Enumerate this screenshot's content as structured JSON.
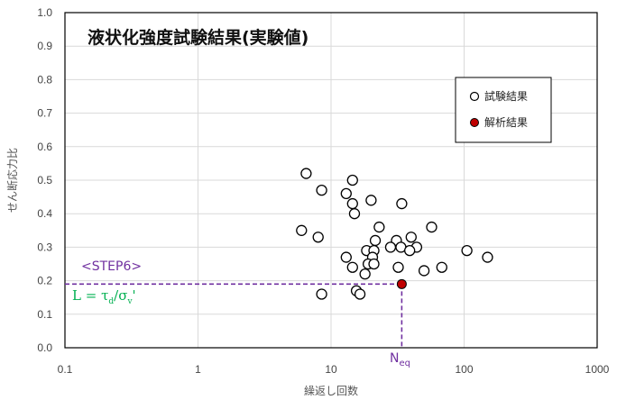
{
  "chart_data": {
    "type": "scatter",
    "title": "液状化強度試験結果(実験値)",
    "xlabel": "繰返し回数",
    "ylabel": "せん断応力比",
    "xscale": "log",
    "xlim": [
      0.1,
      1000
    ],
    "ylim": [
      0,
      1.0
    ],
    "x_ticks": [
      "0.1",
      "1",
      "10",
      "100",
      "1000"
    ],
    "y_ticks": [
      "0.0",
      "0.1",
      "0.2",
      "0.3",
      "0.4",
      "0.5",
      "0.6",
      "0.7",
      "0.8",
      "0.9",
      "1.0"
    ],
    "grid": true,
    "legend_position": "top-right",
    "series": [
      {
        "name": "試験結果",
        "marker": "open-circle",
        "color": "#000000",
        "points": [
          [
            6.5,
            0.52
          ],
          [
            14.5,
            0.5
          ],
          [
            8.5,
            0.47
          ],
          [
            13.0,
            0.46
          ],
          [
            20.0,
            0.44
          ],
          [
            14.5,
            0.43
          ],
          [
            34.0,
            0.43
          ],
          [
            15.0,
            0.4
          ],
          [
            23.0,
            0.36
          ],
          [
            57.0,
            0.36
          ],
          [
            6.0,
            0.35
          ],
          [
            8.0,
            0.33
          ],
          [
            40.0,
            0.33
          ],
          [
            31.0,
            0.32
          ],
          [
            21.5,
            0.32
          ],
          [
            28.0,
            0.3
          ],
          [
            44.0,
            0.3
          ],
          [
            33.5,
            0.3
          ],
          [
            18.5,
            0.29
          ],
          [
            21.0,
            0.29
          ],
          [
            39.0,
            0.29
          ],
          [
            105.0,
            0.29
          ],
          [
            20.5,
            0.27
          ],
          [
            13.0,
            0.27
          ],
          [
            150.0,
            0.27
          ],
          [
            19.0,
            0.25
          ],
          [
            21.0,
            0.25
          ],
          [
            14.5,
            0.24
          ],
          [
            32.0,
            0.24
          ],
          [
            50.0,
            0.23
          ],
          [
            68.0,
            0.24
          ],
          [
            18.0,
            0.22
          ],
          [
            8.5,
            0.16
          ],
          [
            15.5,
            0.17
          ],
          [
            16.5,
            0.16
          ]
        ]
      },
      {
        "name": "解析結果",
        "marker": "filled-circle",
        "color": "#c00000",
        "points": [
          [
            34.0,
            0.19
          ]
        ]
      }
    ],
    "annotations": {
      "step_label": "<STEP6>",
      "step_color": "#7030a0",
      "formula_main": "L = τ",
      "formula_sub1": "d",
      "formula_slash": "/σ",
      "formula_sub2": "v",
      "formula_prime": "'",
      "formula_color": "#00b050",
      "neq_main": "N",
      "neq_sub": "eq",
      "neq_color": "#7030a0",
      "guide_x": 34.0,
      "guide_y": 0.19,
      "guide_color": "#7030a0"
    }
  }
}
